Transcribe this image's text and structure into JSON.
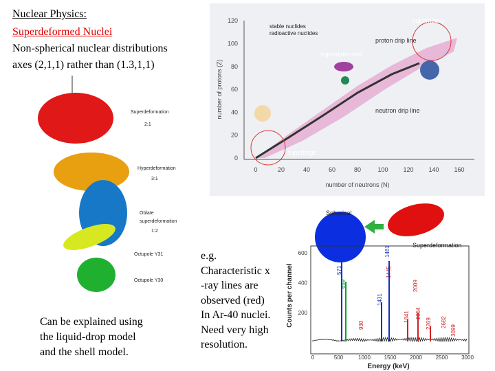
{
  "header": {
    "title": "Nuclear Physics:",
    "subtitle": "Superdeformed Nuclei",
    "lines": [
      "Non-spherical nuclear distributions",
      "axes (2,1,1) rather than (1.3,1,1)"
    ]
  },
  "shapes_figure": {
    "labels": [
      "Superdeformation",
      "2:1",
      "Hyperdeformation",
      "3:1",
      "Oblate",
      "superdeformation",
      "1:2",
      "Octupole Y31",
      "Octupole Y30"
    ]
  },
  "nuclide_chart": {
    "legend": [
      "stable nuclides",
      "radioactive nuclides"
    ],
    "y_label": "number of protons (Z)",
    "x_label": "number of neutrons (N)",
    "yticks": [
      "0",
      "20",
      "40",
      "60",
      "80",
      "100",
      "120"
    ],
    "xticks": [
      "0",
      "20",
      "40",
      "60",
      "80",
      "100",
      "120",
      "140",
      "160"
    ],
    "annotations": [
      "superheavy",
      "proton drip line",
      "superdeformed",
      "neutron drip line",
      "superlarge"
    ]
  },
  "spectrum": {
    "labels": [
      "Spherical",
      "Superdeformation"
    ],
    "y_label": "Counts per channel",
    "x_label": "Energy (keV)",
    "yticks": [
      "200",
      "400",
      "600"
    ],
    "xticks": [
      "0",
      "500",
      "1000",
      "1500",
      "2000",
      "2500",
      "3000"
    ],
    "peaks": [
      "571",
      "659",
      "930",
      "1431",
      "1445",
      "1461",
      "1841",
      "2009",
      "2054",
      "2269",
      "2682",
      "3099"
    ]
  },
  "bottom_text": [
    "Can be explained using",
    "the liquid-drop model",
    "and the shell model."
  ],
  "middle_text": [
    "e.g.",
    "Characteristic x",
    "-ray lines are",
    "observed (red)",
    "In Ar-40 nuclei.",
    "Need very high",
    "resolution."
  ]
}
